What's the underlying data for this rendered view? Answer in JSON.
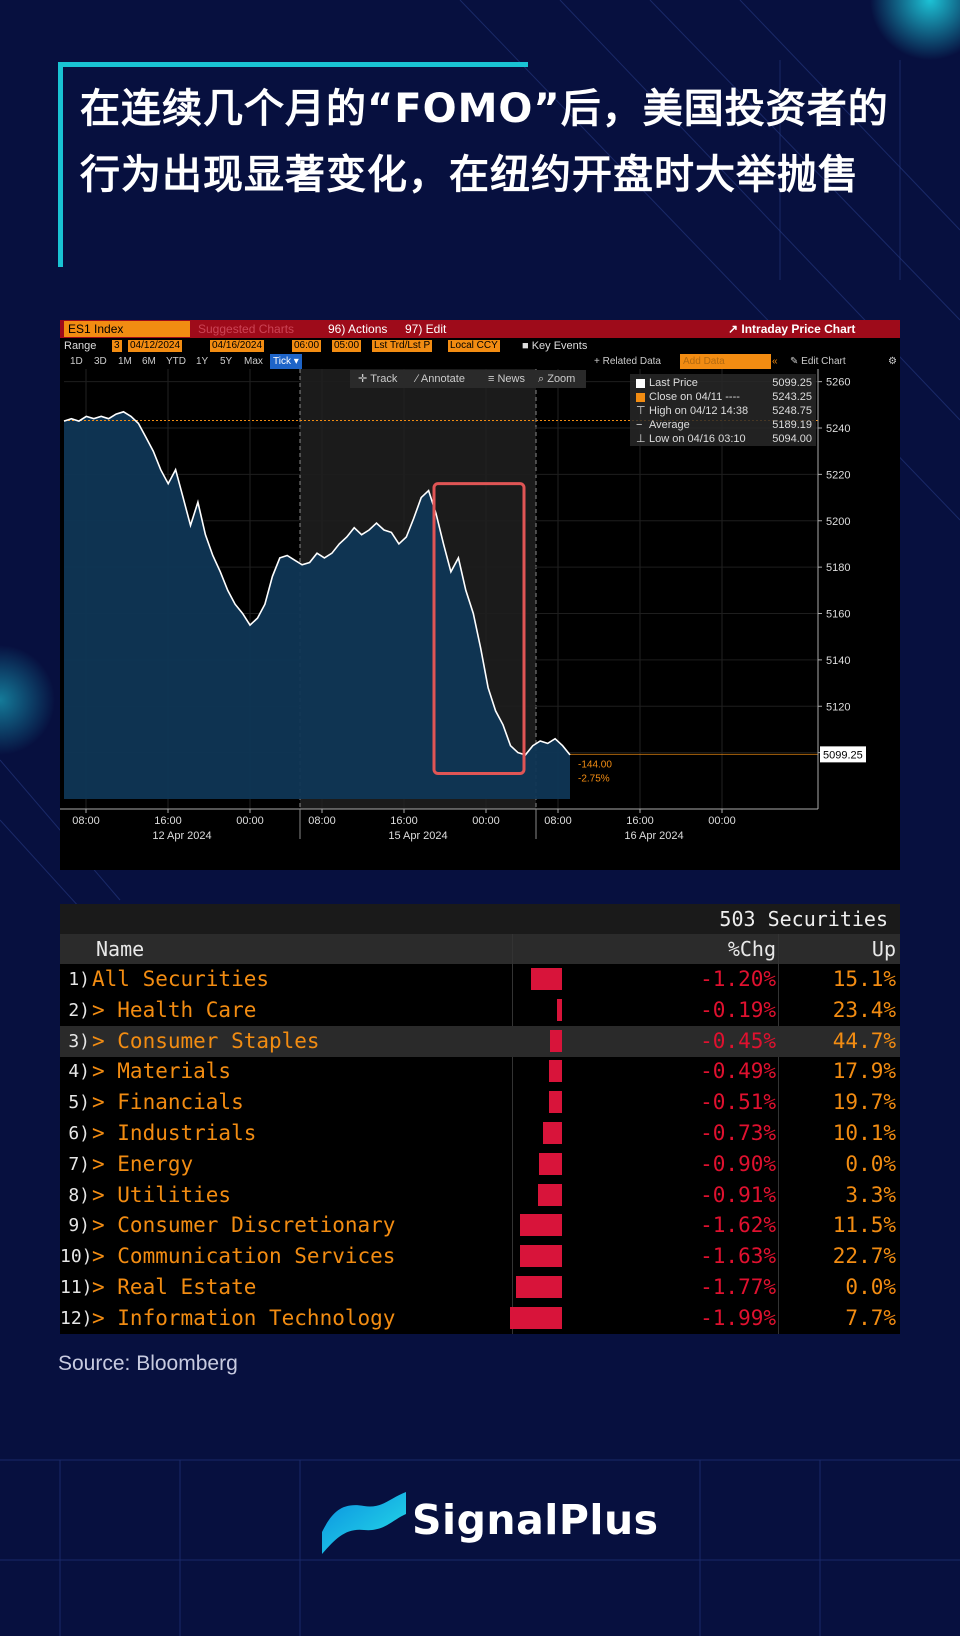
{
  "headline": "在连续几个月的“FOMO”后，美国投资者的行为出现显著变化，在纽约开盘时大举抛售",
  "colors": {
    "background": "#07103f",
    "accent": "#19c3d3",
    "bloomberg_orange": "#f28c12",
    "bloomberg_red": "#d8143a",
    "chart_fill": "#0f3655"
  },
  "bloomberg": {
    "ticker": "ES1 Index",
    "menu": {
      "suggested": "Suggested Charts",
      "actions": "96) Actions",
      "edit": "97) Edit",
      "chart_name": "Intraday Price Chart"
    },
    "range": {
      "label": "Range",
      "number": "3",
      "start": "04/12/2024",
      "end": "04/16/2024",
      "time_from": "06:00",
      "time_to": "05:00",
      "trade_type": "Lst Trd/Lst P",
      "currency": "Local CCY",
      "key_events": "Key Events"
    },
    "periods": [
      "1D",
      "3D",
      "1M",
      "6M",
      "YTD",
      "1Y",
      "5Y",
      "Max"
    ],
    "period_selected": "Tick",
    "right_tools": {
      "related": "+ Related Data",
      "add_data": "Add Data",
      "edit_chart": "Edit Chart"
    },
    "toolbar": {
      "track": "Track",
      "annotate": "Annotate",
      "news": "News",
      "zoom": "Zoom"
    },
    "legend": [
      {
        "label": "Last Price",
        "value": "5099.25",
        "swatch": "#ffffff"
      },
      {
        "label": "Close on 04/11 ----",
        "value": "5243.25",
        "swatch": "#f28c12"
      },
      {
        "label": "High on 04/12 14:38",
        "value": "5248.75",
        "swatch": ""
      },
      {
        "label": "Average",
        "value": "5189.19",
        "swatch": ""
      },
      {
        "label": "Low on 04/16 03:10",
        "value": "5094.00",
        "swatch": ""
      }
    ],
    "change_abs": "-144.00",
    "change_pct": "-2.75%",
    "last_price_tag": "5099.25"
  },
  "chart_data": [
    {
      "type": "line",
      "ylim": [
        5080,
        5262
      ],
      "yticks": [
        5260,
        5240,
        5220,
        5200,
        5180,
        5160,
        5140,
        5120,
        5100
      ],
      "xticks": [
        "08:00",
        "16:00",
        "00:00",
        "08:00",
        "16:00",
        "00:00",
        "08:00",
        "16:00",
        "00:00"
      ],
      "xdates": [
        "12 Apr 2024",
        "15 Apr 2024",
        "16 Apr 2024"
      ],
      "reference_line": 5243.25,
      "last_price": 5099.25,
      "series": [
        {
          "values": [
            5243,
            5244,
            5243,
            5245,
            5244,
            5245,
            5244,
            5246,
            5247,
            5245,
            5242,
            5236,
            5230,
            5222,
            5216,
            5222,
            5210,
            5198,
            5208,
            5194,
            5185,
            5178,
            5170,
            5164,
            5160,
            5155,
            5158,
            5164,
            5176,
            5184,
            5185,
            5183,
            5181,
            5182,
            5186,
            5184,
            5186,
            5190,
            5193,
            5197,
            5194,
            5196,
            5199,
            5196,
            5195,
            5190,
            5193,
            5201,
            5210,
            5213,
            5203,
            5190,
            5178,
            5184,
            5170,
            5160,
            5145,
            5128,
            5118,
            5112,
            5103,
            5100,
            5099,
            5103,
            5105,
            5104,
            5106,
            5103,
            5099
          ]
        }
      ]
    },
    {
      "type": "table",
      "total_label": "503 Securities",
      "columns": [
        "Name",
        "%Chg",
        "Up"
      ],
      "rows": [
        {
          "num": "1)",
          "name": "All Securities",
          "chg": -1.2,
          "chg_label": "-1.20%",
          "up": "15.1%"
        },
        {
          "num": "2)",
          "name": "> Health Care",
          "chg": -0.19,
          "chg_label": "-0.19%",
          "up": "23.4%"
        },
        {
          "num": "3)",
          "name": "> Consumer Staples",
          "chg": -0.45,
          "chg_label": "-0.45%",
          "up": "44.7%"
        },
        {
          "num": "4)",
          "name": "> Materials",
          "chg": -0.49,
          "chg_label": "-0.49%",
          "up": "17.9%"
        },
        {
          "num": "5)",
          "name": "> Financials",
          "chg": -0.51,
          "chg_label": "-0.51%",
          "up": "19.7%"
        },
        {
          "num": "6)",
          "name": "> Industrials",
          "chg": -0.73,
          "chg_label": "-0.73%",
          "up": "10.1%"
        },
        {
          "num": "7)",
          "name": "> Energy",
          "chg": -0.9,
          "chg_label": "-0.90%",
          "up": "0.0%"
        },
        {
          "num": "8)",
          "name": "> Utilities",
          "chg": -0.91,
          "chg_label": "-0.91%",
          "up": "3.3%"
        },
        {
          "num": "9)",
          "name": "> Consumer Discretionary",
          "chg": -1.62,
          "chg_label": "-1.62%",
          "up": "11.5%"
        },
        {
          "num": "10)",
          "name": "> Communication Services",
          "chg": -1.63,
          "chg_label": "-1.63%",
          "up": "22.7%"
        },
        {
          "num": "11)",
          "name": "> Real Estate",
          "chg": -1.77,
          "chg_label": "-1.77%",
          "up": "0.0%"
        },
        {
          "num": "12)",
          "name": "> Information Technology",
          "chg": -1.99,
          "chg_label": "-1.99%",
          "up": "7.7%"
        }
      ]
    }
  ],
  "source": "Source: Bloomberg",
  "brand": "SignalPlus"
}
